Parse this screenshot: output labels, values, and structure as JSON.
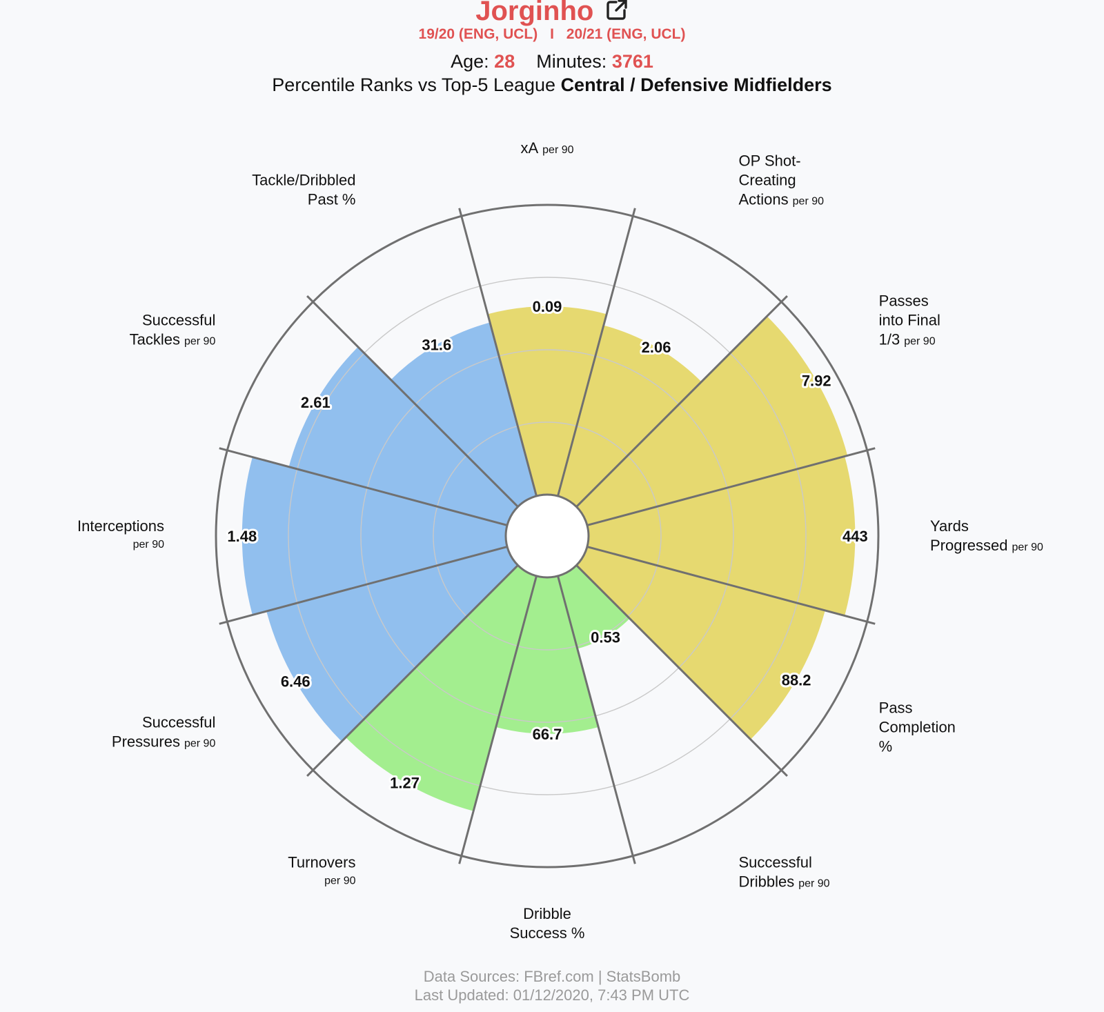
{
  "header": {
    "player_name": "Jorginho",
    "season_1": "19/20 (ENG, UCL)",
    "separator": "I",
    "season_2": "20/21 (ENG, UCL)",
    "age_label": "Age:",
    "age_value": "28",
    "minutes_label": "Minutes:",
    "minutes_value": "3761",
    "subtitle_prefix": "Percentile Ranks vs Top-5 League",
    "subtitle_position": "Central / Defensive Midfielders"
  },
  "footer": {
    "sources": "Data Sources: FBref.com | StatsBomb",
    "updated": "Last Updated: 01/12/2020, 7:43 PM UTC"
  },
  "colors": {
    "attacking": "#e6d970",
    "possession": "#a3ee8f",
    "defending": "#91bfee",
    "accent": "#e05252",
    "outline": "#707070"
  },
  "chart_data": {
    "type": "radar-bar",
    "range": [
      0,
      100
    ],
    "segments": [
      {
        "name": "xA",
        "unit": "per 90",
        "lines": [
          "xA"
        ],
        "value_label": "0.09",
        "percentile": 65,
        "group": "attacking"
      },
      {
        "name": "OP Shot-Creating Actions",
        "unit": "per 90",
        "lines": [
          "OP Shot-",
          "Creating",
          "Actions"
        ],
        "value_label": "2.06",
        "percentile": 61,
        "group": "attacking"
      },
      {
        "name": "Passes into Final 1/3",
        "unit": "per 90",
        "lines": [
          "Passes",
          "into Final",
          "1/3"
        ],
        "value_label": "7.92",
        "percentile": 93,
        "group": "attacking"
      },
      {
        "name": "Yards Progressed",
        "unit": "per 90",
        "lines": [
          "Yards",
          "Progressed"
        ],
        "value_label": "443",
        "percentile": 92,
        "group": "attacking"
      },
      {
        "name": "Pass Completion %",
        "unit": "",
        "lines": [
          "Pass",
          "Completion",
          "%"
        ],
        "value_label": "88.2",
        "percentile": 85,
        "group": "attacking"
      },
      {
        "name": "Successful Dribbles",
        "unit": "per 90",
        "lines": [
          "Successful",
          "Dribbles"
        ],
        "value_label": "0.53",
        "percentile": 26,
        "group": "possession"
      },
      {
        "name": "Dribble Success %",
        "unit": "",
        "lines": [
          "Dribble",
          "Success %"
        ],
        "value_label": "66.7",
        "percentile": 54,
        "group": "possession"
      },
      {
        "name": "Turnovers",
        "unit": "per 90",
        "lines": [
          "Turnovers"
        ],
        "value_label": "1.27",
        "percentile": 84,
        "group": "possession"
      },
      {
        "name": "Successful Pressures",
        "unit": "per 90",
        "lines": [
          "Successful",
          "Pressures"
        ],
        "value_label": "6.46",
        "percentile": 86,
        "group": "defending"
      },
      {
        "name": "Interceptions",
        "unit": "per 90",
        "lines": [
          "Interceptions"
        ],
        "value_label": "1.48",
        "percentile": 91,
        "group": "defending"
      },
      {
        "name": "Successful Tackles",
        "unit": "per 90",
        "lines": [
          "Successful",
          "Tackles"
        ],
        "value_label": "2.61",
        "percentile": 78,
        "group": "defending"
      },
      {
        "name": "Tackle/Dribbled Past %",
        "unit": "",
        "lines": [
          "Tackle/Dribbled",
          "Past %"
        ],
        "value_label": "31.6",
        "percentile": 62,
        "group": "defending"
      }
    ]
  }
}
